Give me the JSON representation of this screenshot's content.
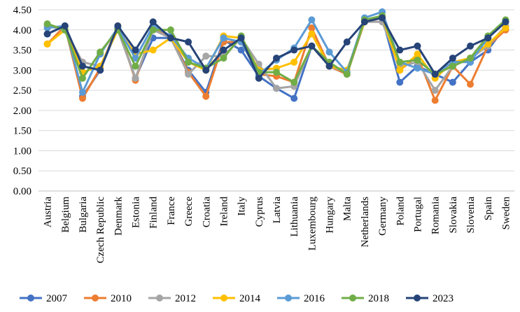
{
  "chart_data": {
    "type": "line",
    "title": "",
    "xlabel": "",
    "ylabel": "",
    "ylim": [
      0,
      4.5
    ],
    "yticks": [
      "0.00",
      "0.50",
      "1.00",
      "1.50",
      "2.00",
      "2.50",
      "3.00",
      "3.50",
      "4.00",
      "4.50"
    ],
    "grid": "horizontal",
    "legend_position": "bottom",
    "categories": [
      "Austria",
      "Belgium",
      "Bulgaria",
      "Czech Republic",
      "Denmark",
      "Estonia",
      "Finland",
      "France",
      "Greece",
      "Croatia",
      "Ireland",
      "Italy",
      "Cyprus",
      "Latvia",
      "Lithuania",
      "Luxembourg",
      "Hungary",
      "Malta",
      "Netherlands",
      "Germany",
      "Poland",
      "Portugal",
      "Romania",
      "Slovakia",
      "Slovenia",
      "Spain",
      "Sweden"
    ],
    "series": [
      {
        "name": "2007",
        "color": "#4472C4",
        "values": [
          3.9,
          4.1,
          2.35,
          3.0,
          4.05,
          2.8,
          3.8,
          3.8,
          3.0,
          2.45,
          3.75,
          3.5,
          2.85,
          2.55,
          2.3,
          3.6,
          3.1,
          2.9,
          4.25,
          4.3,
          2.7,
          3.1,
          2.9,
          2.7,
          3.2,
          3.5,
          4.1
        ]
      },
      {
        "name": "2010",
        "color": "#ED7D31",
        "values": [
          3.65,
          4.1,
          2.3,
          3.05,
          4.1,
          2.75,
          4.05,
          3.8,
          2.95,
          2.35,
          3.7,
          3.7,
          2.9,
          2.85,
          2.7,
          4.05,
          3.1,
          2.9,
          4.2,
          4.3,
          3.0,
          3.35,
          2.25,
          3.1,
          2.65,
          3.6,
          4.0
        ]
      },
      {
        "name": "2012",
        "color": "#A5A5A5",
        "values": [
          4.1,
          4.0,
          3.2,
          3.1,
          4.0,
          2.8,
          4.0,
          3.8,
          2.9,
          3.35,
          3.35,
          3.8,
          3.15,
          2.55,
          2.6,
          3.6,
          3.1,
          2.95,
          4.2,
          4.2,
          3.1,
          3.2,
          2.5,
          3.1,
          3.3,
          3.6,
          4.1
        ]
      },
      {
        "name": "2014",
        "color": "#FFC000",
        "values": [
          3.65,
          4.0,
          2.95,
          3.1,
          4.0,
          3.4,
          3.5,
          3.8,
          3.2,
          3.0,
          3.85,
          3.8,
          3.0,
          3.05,
          3.2,
          3.9,
          3.1,
          3.0,
          4.2,
          4.35,
          3.0,
          3.4,
          2.8,
          3.2,
          3.3,
          3.65,
          4.05
        ]
      },
      {
        "name": "2016",
        "color": "#5B9BD5",
        "values": [
          4.05,
          4.1,
          2.45,
          3.4,
          4.05,
          3.3,
          4.1,
          3.85,
          3.3,
          3.05,
          3.8,
          3.7,
          2.9,
          3.25,
          3.55,
          4.25,
          3.45,
          2.95,
          4.3,
          4.45,
          3.2,
          3.05,
          2.9,
          3.2,
          3.2,
          3.8,
          4.2
        ]
      },
      {
        "name": "2018",
        "color": "#70AD47",
        "values": [
          4.15,
          4.0,
          2.8,
          3.45,
          4.0,
          3.1,
          4.0,
          4.0,
          3.2,
          3.05,
          3.3,
          3.85,
          2.95,
          2.95,
          2.7,
          3.6,
          3.2,
          2.9,
          4.25,
          4.35,
          3.2,
          3.25,
          2.9,
          3.1,
          3.3,
          3.85,
          4.25
        ]
      },
      {
        "name": "2023",
        "color": "#264478",
        "values": [
          3.9,
          4.1,
          3.1,
          3.0,
          4.1,
          3.5,
          4.2,
          3.8,
          3.7,
          3.0,
          3.5,
          3.8,
          2.8,
          3.3,
          3.5,
          3.6,
          3.1,
          3.7,
          4.2,
          4.3,
          3.5,
          3.6,
          2.9,
          3.3,
          3.6,
          3.8,
          4.2
        ]
      }
    ]
  }
}
